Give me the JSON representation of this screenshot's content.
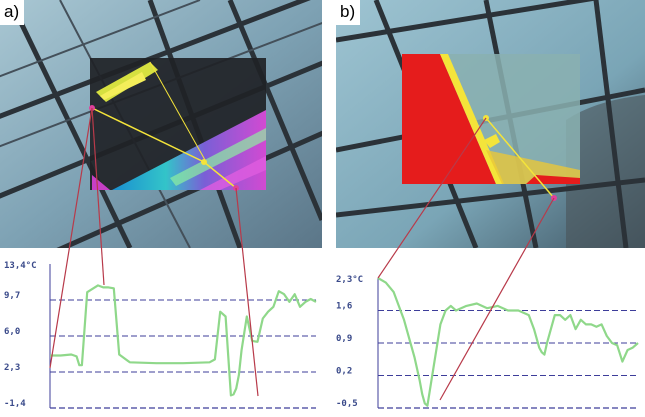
{
  "panels": [
    {
      "label": "a)"
    },
    {
      "label": "b)"
    }
  ],
  "colors": {
    "sky": "#8fb3c4",
    "steel": "#2b3238",
    "thermal_hot": "#e51c1c",
    "thermal_warm": "#f4e43a",
    "thermal_cool": "#2fb8d8",
    "thermal_cold": "#c63fc6",
    "profile_line": "#8fd88a",
    "gridline": "#3d3d9a",
    "tick_text": "#3a4a8a",
    "connector": "#b83a4a"
  },
  "chart_data": [
    {
      "type": "line",
      "panel": "a)",
      "ylim": [
        -1.4,
        13.4
      ],
      "ytick_labels": [
        "13,4°C",
        "9,7",
        "6,0",
        "2,3",
        "-1,4"
      ],
      "yticks": [
        13.4,
        9.7,
        6.0,
        2.3,
        -1.4
      ],
      "grid": true,
      "series": [
        {
          "x": [
            0,
            4,
            8,
            10,
            11,
            12,
            14,
            18,
            20,
            22,
            24,
            26,
            30,
            40,
            50,
            60,
            62,
            64,
            66,
            67,
            68,
            69,
            70,
            71,
            72,
            74,
            76,
            78,
            80,
            82,
            84,
            86,
            88,
            90,
            92,
            94,
            96,
            98,
            100
          ],
          "y": [
            4.0,
            4.0,
            4.1,
            3.9,
            3.0,
            3.0,
            10.5,
            11.2,
            11.0,
            11.0,
            10.9,
            4.1,
            3.3,
            3.2,
            3.2,
            3.3,
            3.6,
            8.5,
            8.0,
            4.0,
            -0.1,
            0.0,
            0.6,
            2.0,
            4.5,
            8.0,
            5.5,
            5.4,
            7.8,
            8.5,
            9.0,
            10.6,
            10.3,
            9.5,
            10.3,
            9.0,
            9.5,
            9.8,
            9.5
          ]
        }
      ]
    },
    {
      "type": "line",
      "panel": "b)",
      "ylim": [
        -0.5,
        2.3
      ],
      "ytick_labels": [
        "2,3°C",
        "1,6",
        "0,9",
        "0,2",
        "-0,5"
      ],
      "yticks": [
        2.3,
        1.6,
        0.9,
        0.2,
        -0.5
      ],
      "grid": true,
      "series": [
        {
          "x": [
            0,
            3,
            6,
            8,
            10,
            12,
            14,
            16,
            17,
            18,
            19,
            20,
            22,
            24,
            26,
            28,
            30,
            34,
            38,
            42,
            46,
            50,
            54,
            58,
            60,
            62,
            63,
            64,
            65,
            66,
            68,
            70,
            72,
            74,
            76,
            78,
            80,
            82,
            84,
            86,
            88,
            90,
            92,
            94,
            96,
            98,
            100
          ],
          "y": [
            2.3,
            2.2,
            2.0,
            1.7,
            1.4,
            1.0,
            0.6,
            0.1,
            -0.2,
            -0.4,
            -0.45,
            -0.1,
            0.6,
            1.3,
            1.6,
            1.7,
            1.6,
            1.7,
            1.75,
            1.65,
            1.7,
            1.6,
            1.6,
            1.5,
            1.2,
            0.8,
            0.7,
            0.65,
            0.9,
            1.1,
            1.5,
            1.5,
            1.4,
            1.5,
            1.2,
            1.4,
            1.3,
            1.3,
            1.25,
            1.3,
            1.05,
            0.9,
            0.85,
            0.5,
            0.75,
            0.8,
            0.9
          ]
        }
      ]
    }
  ]
}
